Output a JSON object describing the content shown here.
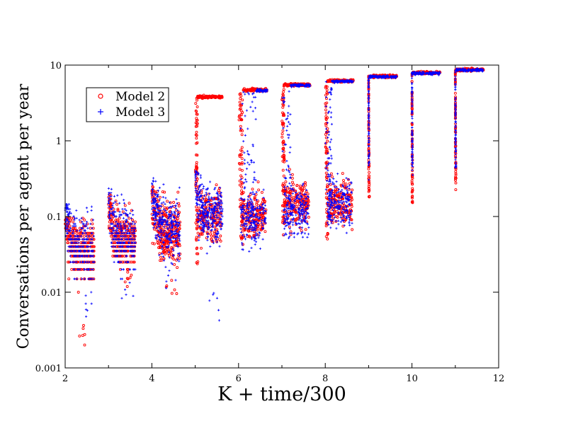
{
  "chart_data": {
    "type": "scatter",
    "xlabel": "K + time/300",
    "ylabel": "Conversations per agent per year",
    "xlim": [
      2,
      12
    ],
    "ylim": [
      0.001,
      10
    ],
    "yscale": "log",
    "grid": false,
    "legend_position": "top-left",
    "x_ticks": [
      {
        "value": 2,
        "label": "2"
      },
      {
        "value": 4,
        "label": "4"
      },
      {
        "value": 6,
        "label": "6"
      },
      {
        "value": 8,
        "label": "8"
      },
      {
        "value": 10,
        "label": "10"
      },
      {
        "value": 12,
        "label": "12"
      }
    ],
    "y_ticks": [
      {
        "value": 0.001,
        "label": "0.001"
      },
      {
        "value": 0.01,
        "label": "0.01"
      },
      {
        "value": 0.1,
        "label": "0.1"
      },
      {
        "value": 1,
        "label": "1"
      },
      {
        "value": 10,
        "label": "10"
      }
    ],
    "series": [
      {
        "name": "Model 2",
        "color": "#ff0000",
        "marker": "circle",
        "clusters": [
          {
            "K": 2,
            "x_range": [
              2.0,
              2.67
            ],
            "peak": 0.1,
            "median": 0.035,
            "spread_low": 0.004,
            "min": 0.002
          },
          {
            "K": 3,
            "x_range": [
              3.0,
              3.62
            ],
            "peak": 0.2,
            "median": 0.05,
            "spread_low": 0.01,
            "min": 0.008
          },
          {
            "K": 4,
            "x_range": [
              4.0,
              4.65
            ],
            "peak": 0.25,
            "median": 0.06,
            "spread_low": 0.01,
            "min": 0.006
          },
          {
            "K": 5,
            "x_range": [
              5.0,
              5.63
            ],
            "peak": 4.0,
            "median": 0.1,
            "plateau": 3.8,
            "plateau_start": 5.05,
            "min": 0.02
          },
          {
            "K": 6,
            "x_range": [
              6.0,
              6.66
            ],
            "peak": 4.7,
            "median": 0.1,
            "plateau": 4.7,
            "plateau_start": 6.1,
            "min": 0.04
          },
          {
            "K": 7,
            "x_range": [
              7.0,
              7.65
            ],
            "peak": 5.5,
            "median": 0.15,
            "plateau": 5.5,
            "plateau_start": 7.05,
            "min": 0.05
          },
          {
            "K": 8,
            "x_range": [
              8.0,
              8.65
            ],
            "peak": 6.3,
            "median": 0.15,
            "plateau": 6.2,
            "plateau_start": 8.05,
            "min": 0.05
          },
          {
            "K": 9,
            "x_range": [
              9.0,
              9.65
            ],
            "peak": 7.2,
            "plateau": 7.1,
            "plateau_start": 9.0,
            "min": 0.18
          },
          {
            "K": 10,
            "x_range": [
              10.0,
              10.65
            ],
            "peak": 8.0,
            "plateau": 7.9,
            "plateau_start": 10.0,
            "min": 0.13
          },
          {
            "K": 11,
            "x_range": [
              11.0,
              11.65
            ],
            "peak": 8.8,
            "plateau": 8.7,
            "plateau_start": 11.0,
            "min": 0.22
          }
        ]
      },
      {
        "name": "Model 3",
        "color": "#0000ff",
        "marker": "plus",
        "clusters": [
          {
            "K": 2,
            "x_range": [
              2.0,
              2.67
            ],
            "peak": 0.15,
            "median": 0.04,
            "spread_low": 0.005,
            "min": 0.004
          },
          {
            "K": 3,
            "x_range": [
              3.0,
              3.62
            ],
            "peak": 0.3,
            "median": 0.05,
            "spread_low": 0.01,
            "min": 0.008
          },
          {
            "K": 4,
            "x_range": [
              4.0,
              4.65
            ],
            "peak": 0.33,
            "median": 0.07,
            "spread_low": 0.012,
            "min": 0.01
          },
          {
            "K": 5,
            "x_range": [
              5.0,
              5.63
            ],
            "peak": 0.4,
            "median": 0.1,
            "min": 0.004
          },
          {
            "K": 6,
            "x_range": [
              6.0,
              6.66
            ],
            "peak": 4.6,
            "median": 0.1,
            "plateau": 4.6,
            "plateau_start": 6.4,
            "min": 0.03
          },
          {
            "K": 7,
            "x_range": [
              7.0,
              7.65
            ],
            "peak": 5.5,
            "median": 0.12,
            "plateau": 5.4,
            "plateau_start": 7.2,
            "min": 0.05
          },
          {
            "K": 8,
            "x_range": [
              8.0,
              8.65
            ],
            "peak": 6.2,
            "median": 0.15,
            "plateau": 6.1,
            "plateau_start": 8.15,
            "min": 0.06
          },
          {
            "K": 9,
            "x_range": [
              9.0,
              9.65
            ],
            "peak": 7.2,
            "plateau": 7.0,
            "plateau_start": 9.0,
            "min": 0.3
          },
          {
            "K": 10,
            "x_range": [
              10.0,
              10.65
            ],
            "peak": 8.0,
            "plateau": 7.8,
            "plateau_start": 10.0,
            "min": 0.35
          },
          {
            "K": 11,
            "x_range": [
              11.0,
              11.65
            ],
            "peak": 8.8,
            "plateau": 8.6,
            "plateau_start": 11.0,
            "min": 0.4
          }
        ]
      }
    ]
  }
}
